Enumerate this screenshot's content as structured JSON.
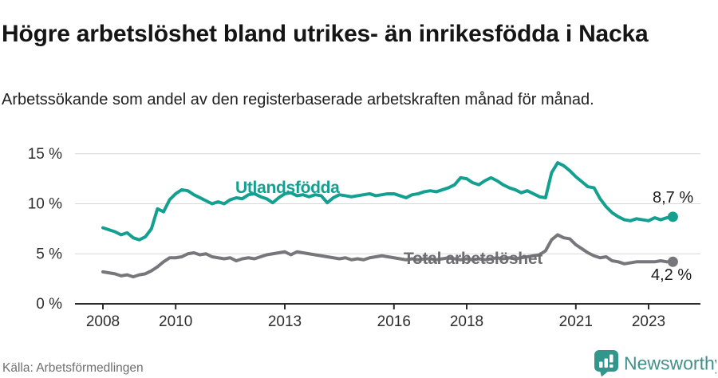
{
  "chart_data": {
    "type": "line",
    "title": "Högre arbetslöshet bland utrikes- än inrikesfödda i Nacka",
    "subtitle": "Arbetssökande som andel av den registerbaserade arbetskraften månad för månad.",
    "source": "Källa: Arbetsförmedlingen",
    "brand": "Newsworthy",
    "grid": true,
    "legend_position": "inline-labels",
    "x_start": 2008.0,
    "x_step_years": 0.16667,
    "x_ticks": [
      2008,
      2010,
      2013,
      2016,
      2018,
      2021,
      2023
    ],
    "y_axis": [
      {
        "value": 15,
        "label": "15 %"
      },
      {
        "value": 10,
        "label": "10 %"
      },
      {
        "value": 5,
        "label": "5 %"
      },
      {
        "value": 0,
        "label": "0 %"
      }
    ],
    "ylim": [
      0,
      15.5
    ],
    "xlabel": "",
    "ylabel": "",
    "colors": {
      "utlandsfodda": "#14a091",
      "total": "#77777b",
      "grid": "#d8d8d8",
      "axis": "#2e2e2e"
    },
    "series": [
      {
        "name": "Utlandsfödda",
        "color": "#14a091",
        "end_label": "8,7 %",
        "values": [
          7.6,
          7.4,
          7.2,
          6.9,
          7.1,
          6.6,
          6.4,
          6.7,
          7.5,
          9.5,
          9.2,
          10.4,
          11.0,
          11.4,
          11.3,
          10.9,
          10.6,
          10.3,
          10.0,
          10.2,
          10.0,
          10.4,
          10.6,
          10.5,
          10.9,
          11.0,
          10.7,
          10.5,
          10.1,
          10.6,
          11.0,
          11.1,
          10.8,
          10.9,
          10.7,
          10.9,
          10.8,
          10.1,
          10.6,
          10.9,
          10.8,
          10.7,
          10.8,
          10.9,
          11.0,
          10.8,
          10.9,
          11.0,
          11.0,
          10.8,
          10.6,
          10.9,
          11.0,
          11.2,
          11.3,
          11.2,
          11.4,
          11.6,
          11.9,
          12.6,
          12.5,
          12.1,
          11.9,
          12.3,
          12.6,
          12.3,
          11.9,
          11.6,
          11.4,
          11.1,
          11.3,
          11.0,
          10.7,
          10.6,
          13.1,
          14.1,
          13.8,
          13.3,
          12.7,
          12.2,
          11.7,
          11.6,
          10.5,
          9.7,
          9.1,
          8.7,
          8.4,
          8.3,
          8.5,
          8.4,
          8.3,
          8.6,
          8.4,
          8.6,
          8.7
        ]
      },
      {
        "name": "Total arbetslöshet",
        "color": "#77777b",
        "end_label": "4,2 %",
        "values": [
          3.2,
          3.1,
          3.0,
          2.8,
          2.9,
          2.7,
          2.9,
          3.0,
          3.3,
          3.7,
          4.2,
          4.6,
          4.6,
          4.7,
          5.0,
          5.1,
          4.9,
          5.0,
          4.7,
          4.6,
          4.5,
          4.6,
          4.3,
          4.5,
          4.6,
          4.5,
          4.7,
          4.9,
          5.0,
          5.1,
          5.2,
          4.9,
          5.2,
          5.1,
          5.0,
          4.9,
          4.8,
          4.7,
          4.6,
          4.5,
          4.6,
          4.4,
          4.5,
          4.4,
          4.6,
          4.7,
          4.8,
          4.7,
          4.6,
          4.5,
          4.4,
          4.5,
          4.4,
          4.5,
          4.5,
          4.4,
          4.5,
          4.6,
          4.5,
          4.4,
          4.5,
          4.4,
          4.5,
          4.4,
          4.5,
          4.6,
          4.5,
          4.6,
          4.5,
          4.6,
          4.7,
          4.8,
          4.9,
          5.3,
          6.4,
          6.9,
          6.6,
          6.5,
          5.9,
          5.5,
          5.1,
          4.8,
          4.6,
          4.7,
          4.3,
          4.2,
          4.0,
          4.1,
          4.2,
          4.2,
          4.2,
          4.2,
          4.3,
          4.2,
          4.2
        ]
      }
    ]
  }
}
